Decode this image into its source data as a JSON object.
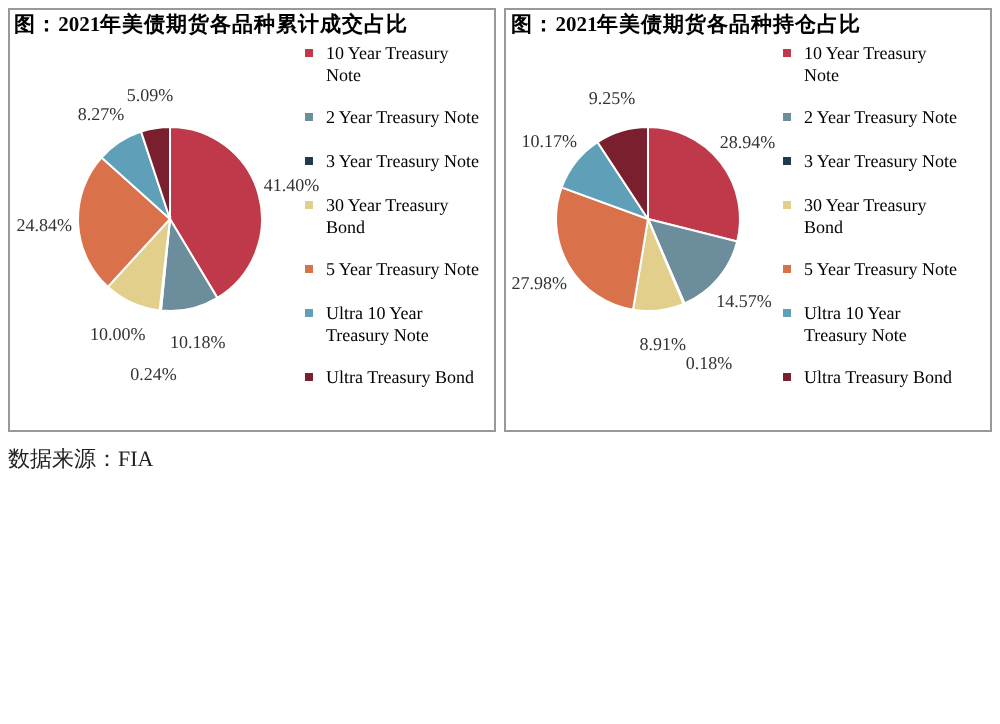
{
  "chart_data": [
    {
      "type": "pie",
      "title": "图：2021年美债期货各品种累计成交占比",
      "categories": [
        "10 Year Treasury Note",
        "2 Year Treasury Note",
        "3 Year Treasury Note",
        "30 Year Treasury Bond",
        "5 Year Treasury Note",
        "Ultra 10 Year Treasury Note",
        "Ultra Treasury Bond"
      ],
      "values": [
        41.4,
        10.18,
        0.24,
        10.0,
        24.84,
        8.27,
        5.09
      ],
      "value_labels": [
        "41.40%",
        "10.18%",
        "0.24%",
        "10.00%",
        "24.84%",
        "8.27%",
        "5.09%"
      ],
      "colors": [
        "#c0394b",
        "#6b8d9c",
        "#1f3a4a",
        "#e3cf8c",
        "#d9714a",
        "#5f9fb8",
        "#7a1f2e"
      ],
      "legend": "right",
      "annotations": [
        "数据来源：FIA"
      ]
    },
    {
      "type": "pie",
      "title": "图：2021年美债期货各品种持仓占比",
      "categories": [
        "10 Year Treasury Note",
        "2 Year Treasury Note",
        "3 Year Treasury Note",
        "30 Year Treasury Bond",
        "5 Year Treasury Note",
        "Ultra 10 Year Treasury Note",
        "Ultra Treasury Bond"
      ],
      "values": [
        28.94,
        14.57,
        0.18,
        8.91,
        27.98,
        10.17,
        9.25
      ],
      "value_labels": [
        "28.94%",
        "14.57%",
        "0.18%",
        "8.91%",
        "27.98%",
        "10.17%",
        "9.25%"
      ],
      "colors": [
        "#c0394b",
        "#6b8d9c",
        "#1f3a4a",
        "#e3cf8c",
        "#d9714a",
        "#5f9fb8",
        "#7a1f2e"
      ],
      "legend": "right"
    }
  ]
}
